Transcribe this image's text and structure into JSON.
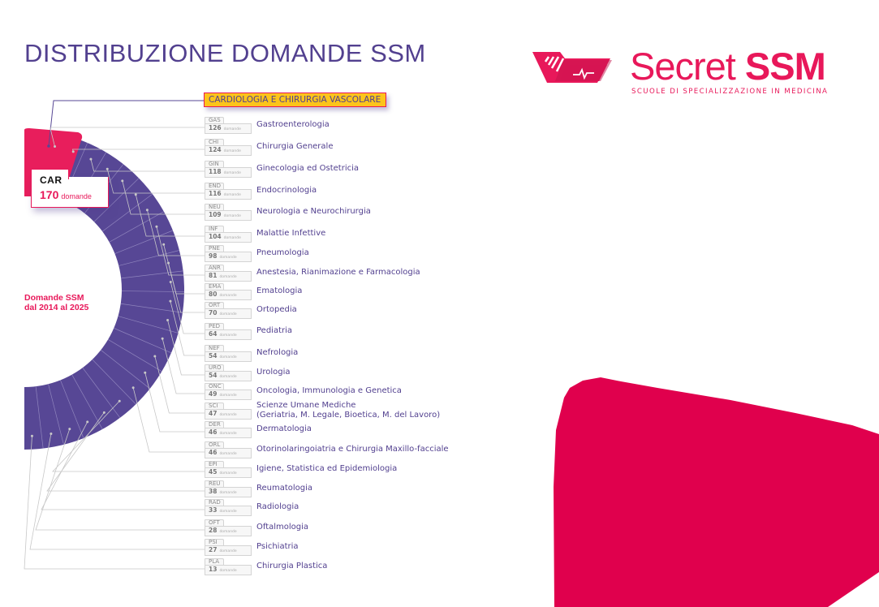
{
  "header": {
    "title": "DISTRIBUZIONE DOMANDE SSM"
  },
  "logo": {
    "brand_light": "Secret",
    "brand_bold": "SSM",
    "tagline": "SCUOLE DI SPECIALIZZAZIONE IN MEDICINA",
    "color": "#e8185a"
  },
  "chart": {
    "center_label_line1": "Domande SSM",
    "center_label_line2": "dal 2014 al 2025",
    "highlight": {
      "code": "CAR",
      "value": "170",
      "unit": "domande",
      "name": "CARDIOLOGIA E CHIRURGIA VASCOLARE"
    },
    "unit": "domande",
    "items": [
      {
        "code": "GAS",
        "value": "126",
        "name": "Gastroenterologia"
      },
      {
        "code": "CHI",
        "value": "124",
        "name": "Chirurgia Generale"
      },
      {
        "code": "GIN",
        "value": "118",
        "name": "Ginecologia ed Ostetricia"
      },
      {
        "code": "END",
        "value": "116",
        "name": "Endocrinologia"
      },
      {
        "code": "NEU",
        "value": "109",
        "name": "Neurologia e Neurochirurgia"
      },
      {
        "code": "INF",
        "value": "104",
        "name": "Malattie Infettive"
      },
      {
        "code": "PNE",
        "value": "98",
        "name": "Pneumologia"
      },
      {
        "code": "ANR",
        "value": "81",
        "name": "Anestesia, Rianimazione e Farmacologia"
      },
      {
        "code": "EMA",
        "value": "80",
        "name": "Ematologia"
      },
      {
        "code": "ORT",
        "value": "70",
        "name": "Ortopedia"
      },
      {
        "code": "PED",
        "value": "64",
        "name": "Pediatria"
      },
      {
        "code": "NEF",
        "value": "54",
        "name": "Nefrologia"
      },
      {
        "code": "URO",
        "value": "54",
        "name": "Urologia"
      },
      {
        "code": "ONC",
        "value": "49",
        "name": "Oncologia, Immunologia e Genetica"
      },
      {
        "code": "SCI",
        "value": "47",
        "name": "Scienze Umane Mediche",
        "name2": "(Geriatria, M. Legale, Bioetica, M. del Lavoro)"
      },
      {
        "code": "DER",
        "value": "46",
        "name": "Dermatologia"
      },
      {
        "code": "ORL",
        "value": "46",
        "name": "Otorinolaringoiatria e Chirurgia Maxillo-facciale"
      },
      {
        "code": "EPI",
        "value": "45",
        "name": "Igiene, Statistica ed Epidemiologia"
      },
      {
        "code": "REU",
        "value": "38",
        "name": "Reumatologia"
      },
      {
        "code": "RAD",
        "value": "33",
        "name": "Radiologia"
      },
      {
        "code": "OFT",
        "value": "28",
        "name": "Oftalmologia"
      },
      {
        "code": "PSI",
        "value": "27",
        "name": "Psichiatria"
      },
      {
        "code": "PLA",
        "value": "13",
        "name": "Chirurgia Plastica"
      }
    ],
    "colors": {
      "arc": "#574795",
      "highlight": "#e81e5c",
      "title_bg": "#fcc41a",
      "text": "#52408f"
    }
  },
  "chart_data": {
    "type": "pie",
    "title": "DISTRIBUZIONE DOMANDE SSM",
    "subtitle": "Domande SSM dal 2014 al 2025",
    "categories": [
      "CAR",
      "GAS",
      "CHI",
      "GIN",
      "END",
      "NEU",
      "INF",
      "PNE",
      "ANR",
      "EMA",
      "ORT",
      "PED",
      "NEF",
      "URO",
      "ONC",
      "SCI",
      "DER",
      "ORL",
      "EPI",
      "REU",
      "RAD",
      "OFT",
      "PSI",
      "PLA"
    ],
    "labels": [
      "Cardiologia e Chirurgia Vascolare",
      "Gastroenterologia",
      "Chirurgia Generale",
      "Ginecologia ed Ostetricia",
      "Endocrinologia",
      "Neurologia e Neurochirurgia",
      "Malattie Infettive",
      "Pneumologia",
      "Anestesia, Rianimazione e Farmacologia",
      "Ematologia",
      "Ortopedia",
      "Pediatria",
      "Nefrologia",
      "Urologia",
      "Oncologia, Immunologia e Genetica",
      "Scienze Umane Mediche (Geriatria, M. Legale, Bioetica, M. del Lavoro)",
      "Dermatologia",
      "Otorinolaringoiatria e Chirurgia Maxillo-facciale",
      "Igiene, Statistica ed Epidemiologia",
      "Reumatologia",
      "Radiologia",
      "Oftalmologia",
      "Psichiatria",
      "Chirurgia Plastica"
    ],
    "values": [
      170,
      126,
      124,
      118,
      116,
      109,
      104,
      98,
      81,
      80,
      70,
      64,
      54,
      54,
      49,
      47,
      46,
      46,
      45,
      38,
      33,
      28,
      27,
      13
    ],
    "unit": "domande",
    "highlighted": "CAR"
  }
}
